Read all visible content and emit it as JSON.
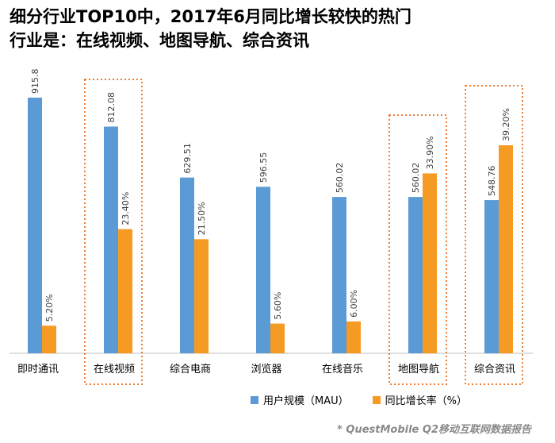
{
  "title": {
    "line1": "细分行业TOP10中，2017年6月同比增长较快的热门",
    "line2": "行业是：在线视频、地图导航、综合资讯"
  },
  "colors": {
    "blue": "#5b9bd5",
    "orange": "#f59a23",
    "highlight_border": "#ed7d31"
  },
  "legend": {
    "mau_label": "用户规模（MAU）",
    "growth_label": "同比增长率（%）"
  },
  "source": "* QuestMobile Q2移动互联网数据报告",
  "chart_data": {
    "type": "bar",
    "title": "细分行业TOP10中，2017年6月同比增长较快的热门行业是：在线视频、地图导航、综合资讯",
    "categories": [
      "即时通讯",
      "在线视频",
      "综合电商",
      "浏览器",
      "在线音乐",
      "地图导航",
      "综合资讯"
    ],
    "series": [
      {
        "name": "用户规模（MAU）",
        "values": [
          915.8,
          812.08,
          629.51,
          596.55,
          560.02,
          560.02,
          548.76
        ],
        "labels": [
          "915.8",
          "812.08",
          "629.51",
          "596.55",
          "560.02",
          "560.02",
          "548.76"
        ]
      },
      {
        "name": "同比增长率（%）",
        "values": [
          5.2,
          23.4,
          21.5,
          5.6,
          6.0,
          33.9,
          39.2
        ],
        "labels": [
          "5.20%",
          "23.40%",
          "21.50%",
          "5.60%",
          "6.00%",
          "33.90%",
          "39.20%"
        ]
      }
    ],
    "highlighted": [
      "在线视频",
      "地图导航",
      "综合资讯"
    ],
    "legend_position": "bottom",
    "grid": false
  }
}
